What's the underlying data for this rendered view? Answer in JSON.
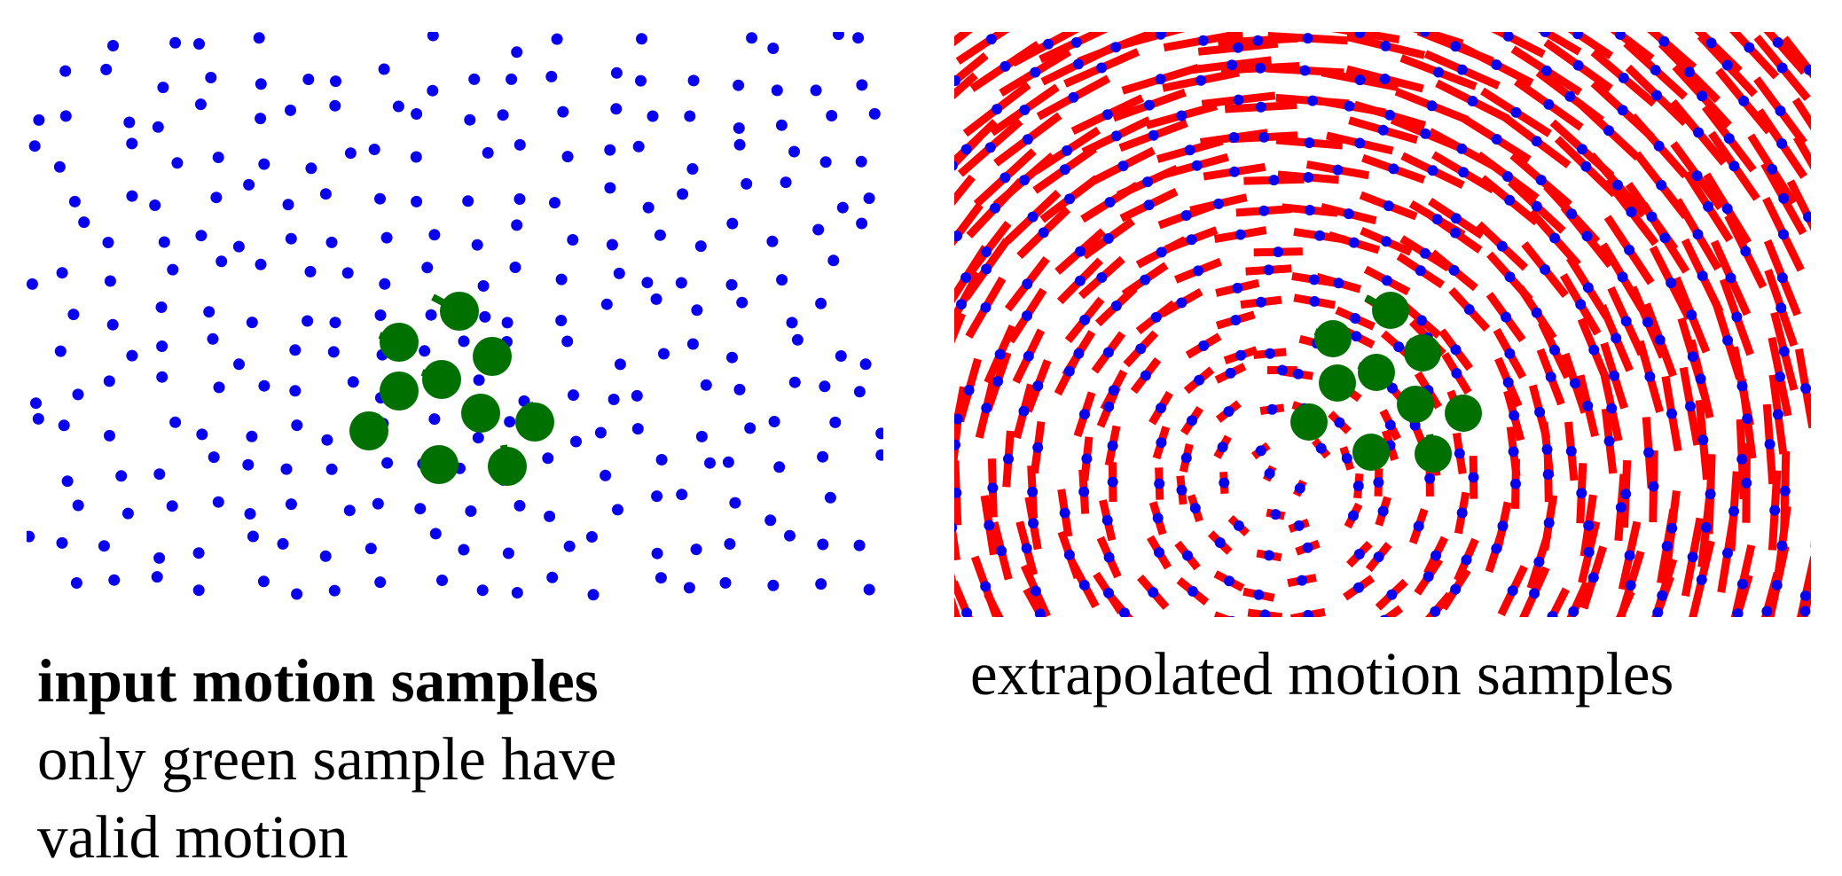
{
  "left_panel": {
    "caption_title": "input motion samples",
    "caption_line1": "only green sample have",
    "caption_line2": "valid motion"
  },
  "right_panel": {
    "caption": "extrapolated motion samples"
  },
  "colors": {
    "sample_dot": "#0a00f0",
    "valid_sample": "#007000",
    "extrapolated_vector": "#ff0000"
  }
}
